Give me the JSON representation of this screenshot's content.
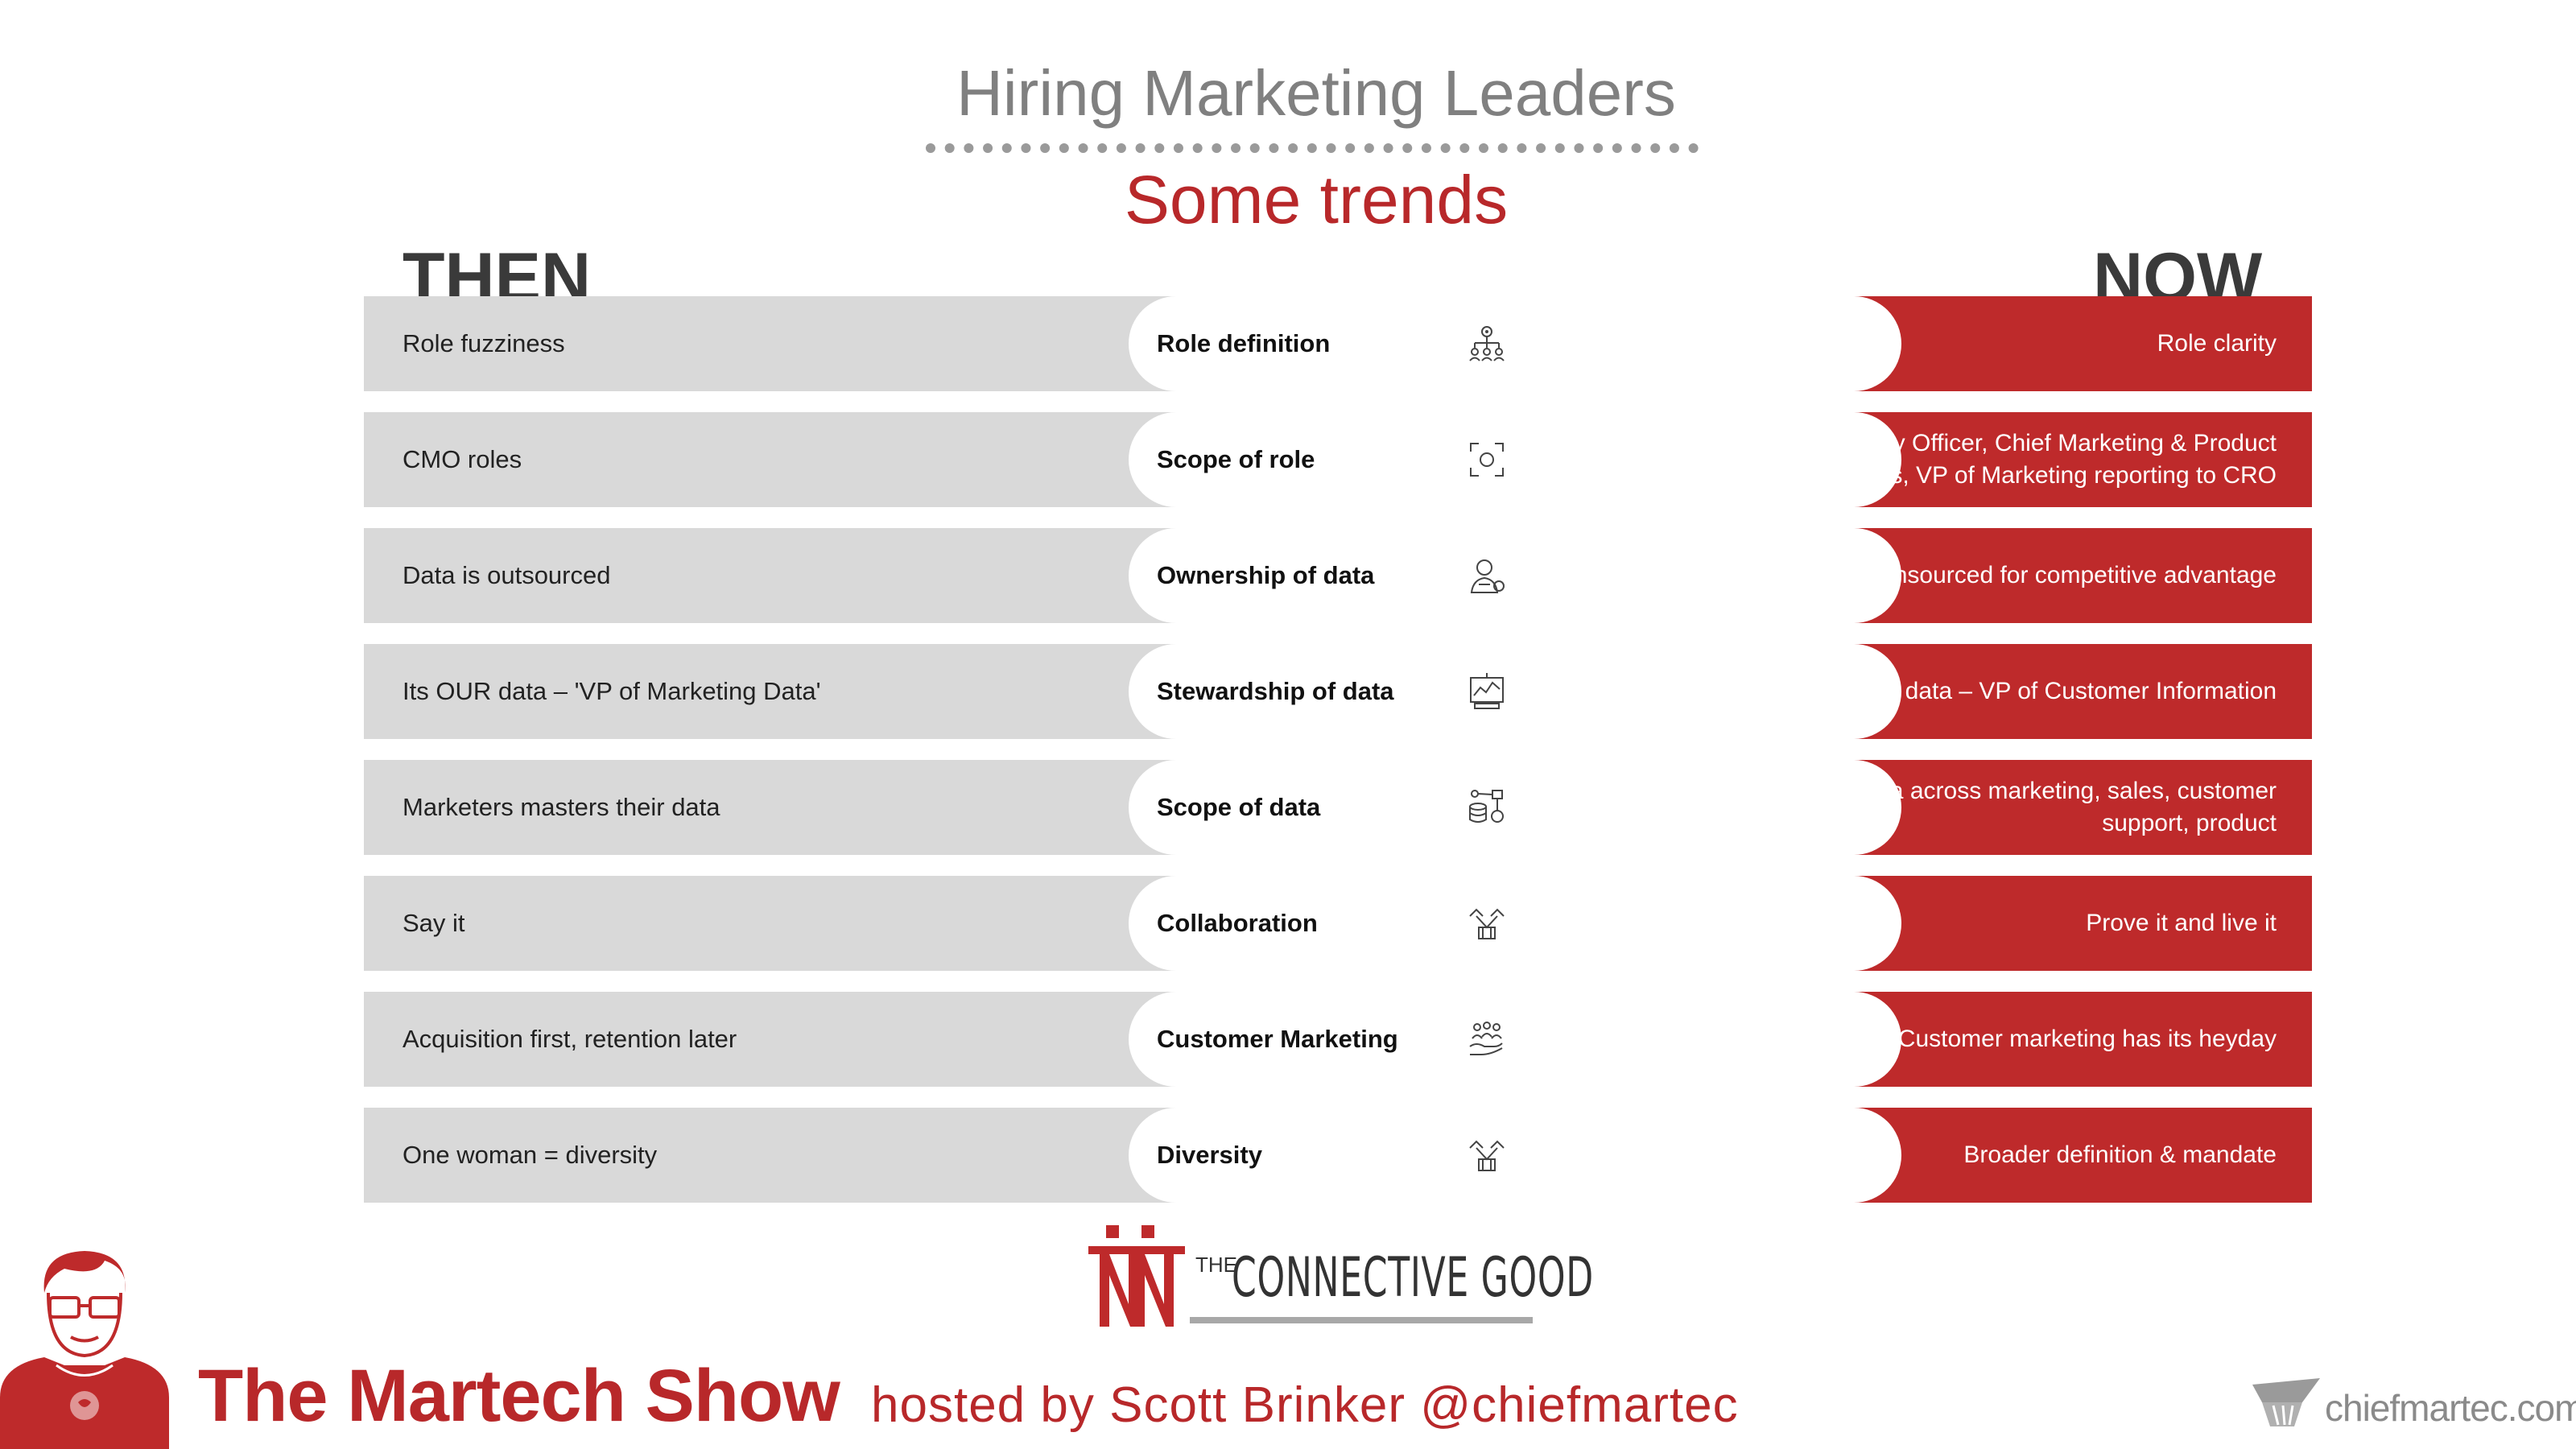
{
  "header": {
    "title": "Hiring Marketing Leaders",
    "subtitle": "Some trends"
  },
  "columns": {
    "then": "THEN",
    "now": "NOW"
  },
  "rows": [
    {
      "then": "Role fuzziness",
      "topic": "Role definition",
      "icon": "org-chart-icon",
      "now": "Role clarity"
    },
    {
      "then": "CMO roles",
      "topic": "Scope of role",
      "icon": "focus-frame-icon",
      "now": "Chief Marketing & Strategy Officer, Chief Marketing & Product Officer roles, VP of Marketing reporting to CRO"
    },
    {
      "then": "Data is outsourced",
      "topic": "Ownership of data",
      "icon": "person-data-icon",
      "now": "Data is insourced for competitive advantage"
    },
    {
      "then": "Its OUR data – 'VP of Marketing Data'",
      "topic": "Stewardship of data",
      "icon": "dashboard-icon",
      "now": "It's OUR CUSTOMERS' data – VP of Customer Information"
    },
    {
      "then": "Marketers masters their data",
      "topic": "Scope of data",
      "icon": "database-network-icon",
      "now": "Marketers leverage data across marketing, sales, customer support, product"
    },
    {
      "then": "Say it",
      "topic": "Collaboration",
      "icon": "handshake-icon",
      "now": "Prove it and live it"
    },
    {
      "then": "Acquisition first, retention later",
      "topic": "Customer Marketing",
      "icon": "customer-care-icon",
      "now": "Customer marketing has its heyday"
    },
    {
      "then": "One woman = diversity",
      "topic": "Diversity",
      "icon": "handshake-icon",
      "now": "Broader definition & mandate"
    }
  ],
  "footer": {
    "brand_small": "THE",
    "brand_name": "CONNECTIVE GOOD",
    "show_name": "The Martech Show",
    "host_line": "hosted by Scott Brinker @chiefmartec",
    "site": "chiefmartec.com"
  },
  "colors": {
    "accent_red": "#be2a2b",
    "then_gray": "#d9d9d9",
    "title_gray": "#808080"
  }
}
